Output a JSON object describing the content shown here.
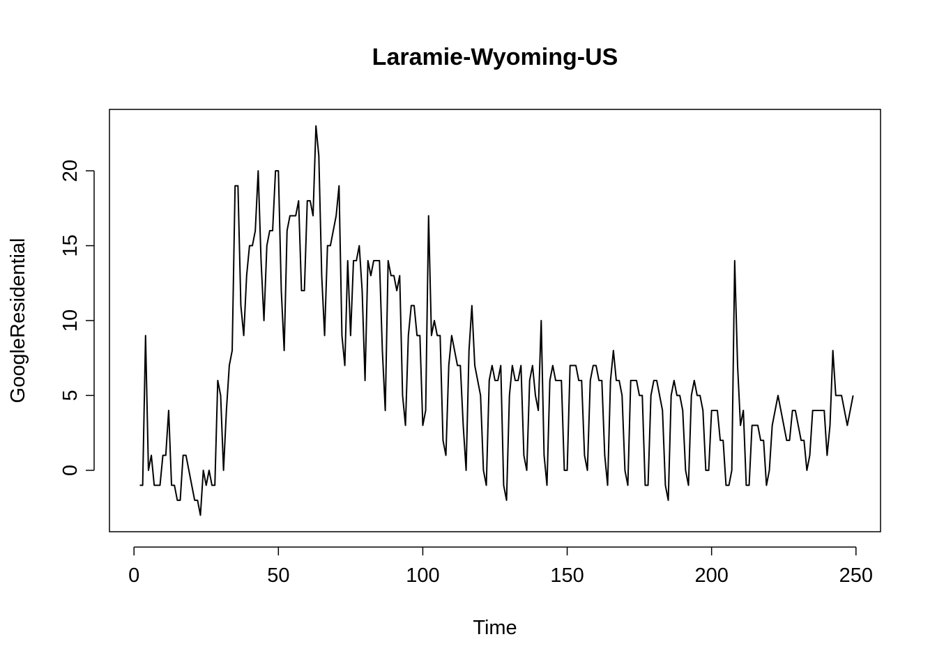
{
  "chart_data": {
    "type": "line",
    "title": "Laramie-Wyoming-US",
    "xlabel": "Time",
    "ylabel": "GoogleResidential",
    "xlim": [
      -8.5,
      258.5
    ],
    "ylim": [
      -4.1,
      24.1
    ],
    "x_ticks": [
      0,
      50,
      100,
      150,
      200,
      250
    ],
    "x_tick_labels": [
      "0",
      "50",
      "100",
      "150",
      "200",
      "250"
    ],
    "y_ticks": [
      0,
      5,
      10,
      15,
      20
    ],
    "y_tick_labels": [
      "0",
      "5",
      "10",
      "15",
      "20"
    ],
    "grid": false,
    "legend": "none",
    "line_color": "#000000",
    "x_start": 2,
    "values": [
      -1,
      -1,
      9,
      0,
      1,
      -1,
      -1,
      -1,
      1,
      1,
      4,
      -1,
      -1,
      -2,
      -2,
      1,
      1,
      0,
      -1,
      -2,
      -2,
      -3,
      0,
      -1,
      0,
      -1,
      -1,
      6,
      5,
      0,
      4,
      7,
      8,
      19,
      19,
      11,
      9,
      13,
      15,
      15,
      16,
      20,
      14,
      10,
      15,
      16,
      16,
      20,
      20,
      12,
      8,
      16,
      17,
      17,
      17,
      18,
      12,
      12,
      18,
      18,
      17,
      23,
      21,
      13,
      9,
      15,
      15,
      16,
      17,
      19,
      9,
      7,
      14,
      9,
      14,
      14,
      15,
      12,
      6,
      14,
      13,
      14,
      14,
      14,
      8,
      4,
      14,
      13,
      13,
      12,
      13,
      5,
      3,
      9,
      11,
      11,
      9,
      9,
      3,
      4,
      17,
      9,
      10,
      9,
      9,
      2,
      1,
      7,
      9,
      8,
      7,
      7,
      3,
      0,
      8,
      11,
      7,
      6,
      5,
      0,
      -1,
      6,
      7,
      6,
      6,
      7,
      -1,
      -2,
      5,
      7,
      6,
      6,
      7,
      1,
      0,
      6,
      7,
      5,
      4,
      10,
      1,
      -1,
      6,
      7,
      6,
      6,
      6,
      0,
      0,
      7,
      7,
      7,
      6,
      6,
      1,
      0,
      6,
      7,
      7,
      6,
      6,
      1,
      -1,
      6,
      8,
      6,
      6,
      5,
      0,
      -1,
      6,
      6,
      6,
      5,
      5,
      -1,
      -1,
      5,
      6,
      6,
      5,
      4,
      -1,
      -2,
      5,
      6,
      5,
      5,
      4,
      0,
      -1,
      5,
      6,
      5,
      5,
      4,
      0,
      0,
      4,
      4,
      4,
      2,
      2,
      -1,
      -1,
      0,
      14,
      7,
      3,
      4,
      -1,
      -1,
      3,
      3,
      3,
      2,
      2,
      -1,
      0,
      3,
      4,
      5,
      4,
      3,
      2,
      2,
      4,
      4,
      3,
      2,
      2,
      0,
      1,
      4,
      4,
      4,
      4,
      4,
      1,
      3,
      8,
      5,
      5,
      5,
      4,
      3,
      4,
      5
    ]
  }
}
